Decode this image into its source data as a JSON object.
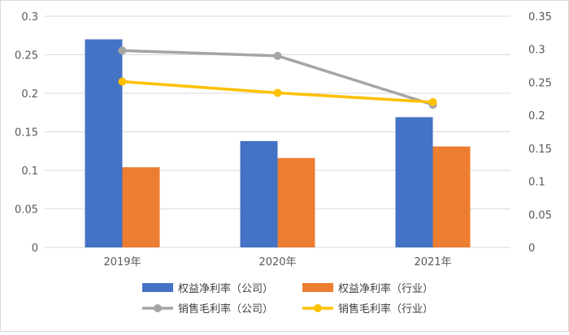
{
  "chart_data": {
    "type": "bar",
    "categories": [
      "2019年",
      "2020年",
      "2021年"
    ],
    "series": [
      {
        "name": "权益净利率（公司）",
        "type": "bar",
        "axis": "left",
        "color": "#4472C4",
        "values": [
          0.27,
          0.138,
          0.169
        ]
      },
      {
        "name": "权益净利率（行业）",
        "type": "bar",
        "axis": "left",
        "color": "#ED7D31",
        "values": [
          0.104,
          0.116,
          0.131
        ]
      },
      {
        "name": "销售毛利率（公司）",
        "type": "line",
        "axis": "right",
        "color": "#A5A5A5",
        "values": [
          0.298,
          0.29,
          0.216
        ]
      },
      {
        "name": "销售毛利率（行业）",
        "type": "line",
        "axis": "right",
        "color": "#FFC000",
        "values": [
          0.251,
          0.234,
          0.22
        ]
      }
    ],
    "left_axis": {
      "min": 0,
      "max": 0.3,
      "ticks": [
        "0",
        "0.05",
        "0.1",
        "0.15",
        "0.2",
        "0.25",
        "0.3"
      ]
    },
    "right_axis": {
      "min": 0,
      "max": 0.35,
      "ticks": [
        "0",
        "0.05",
        "0.1",
        "0.15",
        "0.2",
        "0.25",
        "0.3",
        "0.35"
      ]
    },
    "grid": true,
    "legend_position": "bottom"
  }
}
